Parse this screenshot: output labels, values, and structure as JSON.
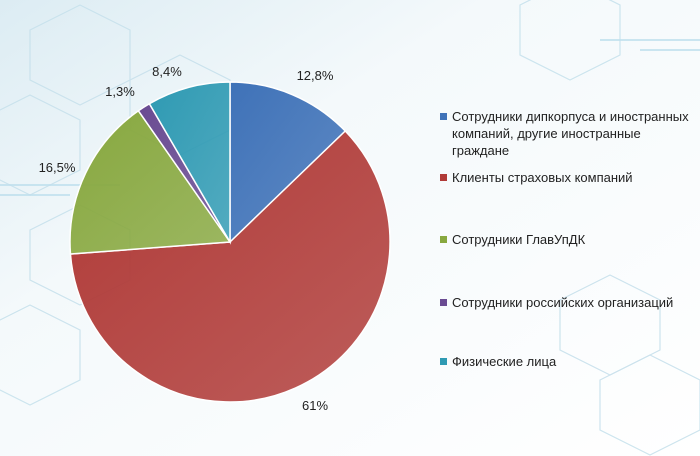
{
  "chart_data": {
    "type": "pie",
    "title": "",
    "legend_position": "right",
    "slices": [
      {
        "label": "Сотрудники дипкорпуса и иностранных компаний, другие иностранные граждане",
        "value": 12.8,
        "value_label": "12,8%",
        "color": "#3f72b8"
      },
      {
        "label": "Клиенты страховых компаний",
        "value": 61,
        "value_label": "61%",
        "color": "#b03a37"
      },
      {
        "label": "Сотрудники ГлавУпДК",
        "value": 16.5,
        "value_label": "16,5%",
        "color": "#88a83f"
      },
      {
        "label": "Сотрудники российских организаций",
        "value": 1.3,
        "value_label": "1,3%",
        "color": "#6a4b92"
      },
      {
        "label": "Физические лица",
        "value": 8.4,
        "value_label": "8,4%",
        "color": "#2f9ab3"
      }
    ]
  }
}
